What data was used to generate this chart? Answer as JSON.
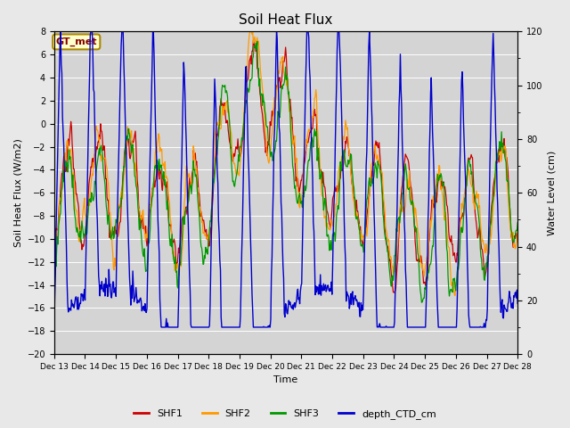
{
  "title": "Soil Heat Flux",
  "ylabel_left": "Soil Heat Flux (W/m2)",
  "ylabel_right": "Water Level (cm)",
  "xlabel": "Time",
  "ylim_left": [
    -20,
    8
  ],
  "ylim_right": [
    0,
    120
  ],
  "background_color": "#e8e8e8",
  "plot_bg_color": "#d4d4d4",
  "series_colors": {
    "SHF1": "#cc0000",
    "SHF2": "#ff9900",
    "SHF3": "#009900",
    "depth_CTD_cm": "#0000cc"
  },
  "legend_labels": [
    "SHF1",
    "SHF2",
    "SHF3",
    "depth_CTD_cm"
  ],
  "annotation_text": "GT_met",
  "annotation_fg": "#880000",
  "annotation_bg": "#ffffcc",
  "annotation_border": "#aa8800",
  "x_tick_labels": [
    "Dec 13",
    "Dec 14",
    "Dec 15",
    "Dec 16",
    "Dec 17",
    "Dec 18",
    "Dec 19",
    "Dec 20",
    "Dec 21",
    "Dec 22",
    "Dec 23",
    "Dec 24",
    "Dec 25",
    "Dec 26",
    "Dec 27",
    "Dec 28"
  ],
  "x_tick_positions": [
    13,
    14,
    15,
    16,
    17,
    18,
    19,
    20,
    21,
    22,
    23,
    24,
    25,
    26,
    27,
    28
  ]
}
